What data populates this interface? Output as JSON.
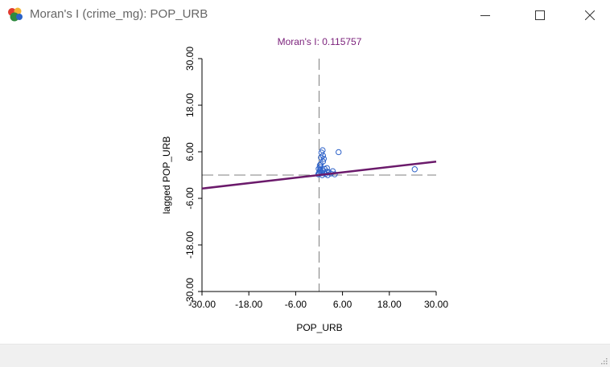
{
  "window": {
    "title": "Moran's I (crime_mg): POP_URB",
    "icon": "geoda-app-icon",
    "controls": [
      "minimize-icon",
      "maximize-icon",
      "close-icon"
    ]
  },
  "chart_data": {
    "type": "scatter",
    "title": "Moran's I: 0.115757",
    "xlabel": "POP_URB",
    "ylabel": "lagged POP_URB",
    "xlim": [
      -30,
      30
    ],
    "ylim": [
      -30,
      30
    ],
    "x_ticks": [
      "-30.00",
      "-18.00",
      "-6.00",
      "6.00",
      "18.00",
      "30.00"
    ],
    "y_ticks": [
      "-30.00",
      "-18.00",
      "-6.00",
      "6.00",
      "18.00",
      "30.00"
    ],
    "grid": false,
    "reference_lines": {
      "vertical_x": 0,
      "horizontal_y": 0
    },
    "regression": {
      "slope": 0.115757,
      "intercept": 0
    },
    "colors": {
      "points": "#2e62c9",
      "regression": "#6b1a6b",
      "title": "#7a1f7a",
      "reference": "#808080"
    },
    "points": [
      {
        "x": 0.2,
        "y": 1.0
      },
      {
        "x": 0.6,
        "y": 0.5
      },
      {
        "x": 1.0,
        "y": 1.2
      },
      {
        "x": -0.2,
        "y": 0.2
      },
      {
        "x": 0.3,
        "y": 2.0
      },
      {
        "x": 0.8,
        "y": 0.0
      },
      {
        "x": 1.4,
        "y": 0.6
      },
      {
        "x": 2.0,
        "y": 0.9
      },
      {
        "x": 0.0,
        "y": 0.6
      },
      {
        "x": -0.1,
        "y": 1.6
      },
      {
        "x": 1.0,
        "y": 3.5
      },
      {
        "x": 0.5,
        "y": 4.5
      },
      {
        "x": 1.0,
        "y": 5.0
      },
      {
        "x": 0.6,
        "y": 5.8
      },
      {
        "x": 1.2,
        "y": 4.2
      },
      {
        "x": 0.9,
        "y": 6.4
      },
      {
        "x": 1.4,
        "y": 1.6
      },
      {
        "x": 2.0,
        "y": 1.8
      },
      {
        "x": 2.5,
        "y": 0.7
      },
      {
        "x": 3.0,
        "y": 0.4
      },
      {
        "x": 4.0,
        "y": 0.2
      },
      {
        "x": 3.5,
        "y": 1.0
      },
      {
        "x": 0.1,
        "y": 0.4
      },
      {
        "x": 0.4,
        "y": 2.8
      },
      {
        "x": 1.6,
        "y": 0.3
      },
      {
        "x": 0.2,
        "y": 2.5
      },
      {
        "x": 0.3,
        "y": 1.4
      },
      {
        "x": 2.2,
        "y": 0.0
      },
      {
        "x": 5.0,
        "y": 5.9
      },
      {
        "x": 24.5,
        "y": 1.5
      }
    ]
  }
}
